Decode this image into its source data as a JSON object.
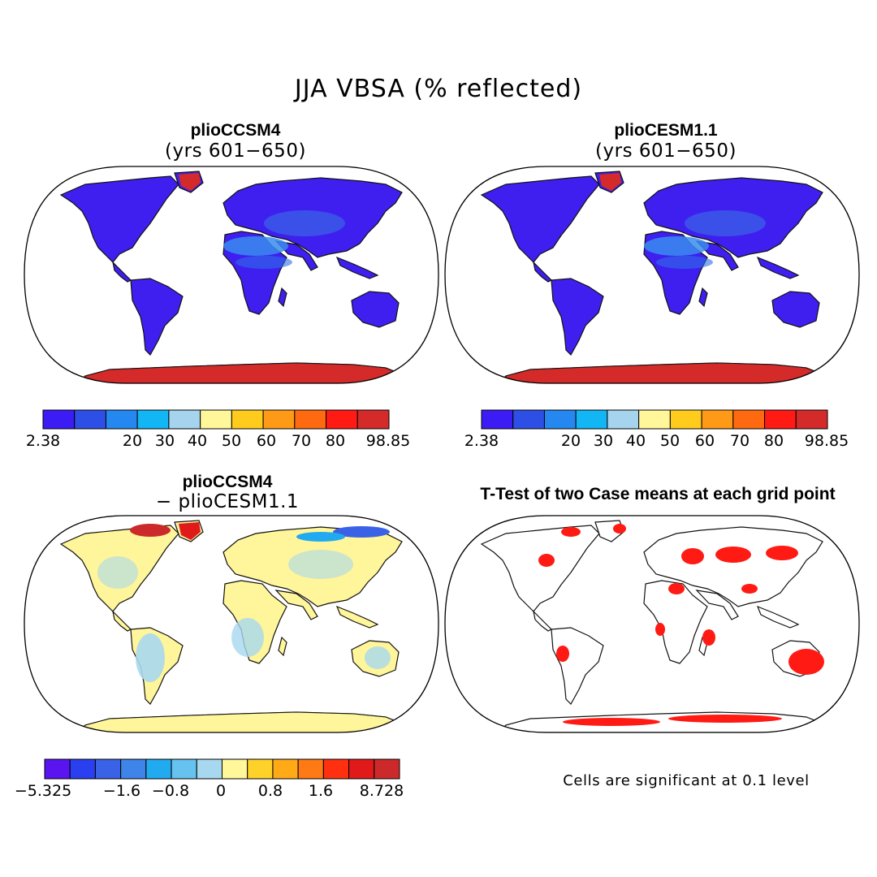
{
  "figure": {
    "title": "JJA VBSA (% reflected)"
  },
  "panels": [
    {
      "id": "top-left",
      "title": "plioCCSM4",
      "subtitle": "(yrs 601−650)",
      "palette_ref": "abs",
      "land_fill": "#3f1ff0"
    },
    {
      "id": "top-right",
      "title": "plioCESM1.1",
      "subtitle": "(yrs 601−650)",
      "palette_ref": "abs",
      "land_fill": "#3f1ff0"
    },
    {
      "id": "bottom-left",
      "title": "plioCCSM4",
      "subtitle": "− plioCESM1.1",
      "palette_ref": "diff",
      "land_fill": "#fff59a"
    },
    {
      "id": "bottom-right",
      "title": "T-Test of two Case means at each grid point",
      "subtitle": "",
      "palette_ref": "sig",
      "land_fill": "#ffffff"
    }
  ],
  "colorbars": {
    "abs": {
      "colors": [
        "#3c1cf5",
        "#2e4fe6",
        "#2488f0",
        "#12b6f5",
        "#a6d4ee",
        "#fff79a",
        "#ffcc1e",
        "#ff9a16",
        "#ff6a10",
        "#ff1a14",
        "#d42a2a"
      ],
      "boundaries": [
        2.38,
        20,
        30,
        40,
        50,
        60,
        70,
        80,
        98.85
      ],
      "tick_labels": [
        "2.38",
        "20",
        "30",
        "40",
        "50",
        "60",
        "70",
        "80",
        "98.85"
      ]
    },
    "diff": {
      "colors": [
        "#5a14f0",
        "#2a3ff0",
        "#3a62e6",
        "#3f84e8",
        "#22aaf0",
        "#66c2ee",
        "#a8d8ef",
        "#fff79a",
        "#ffd22a",
        "#ffaa16",
        "#ff7a14",
        "#ff3010",
        "#e01a1a",
        "#cc2a2a"
      ],
      "tick_labels": [
        "−5.325",
        "−1.6",
        "−0.8",
        "0",
        "0.8",
        "1.6",
        "8.728"
      ]
    }
  },
  "significance_note": "Cells are significant at 0.1 level"
}
